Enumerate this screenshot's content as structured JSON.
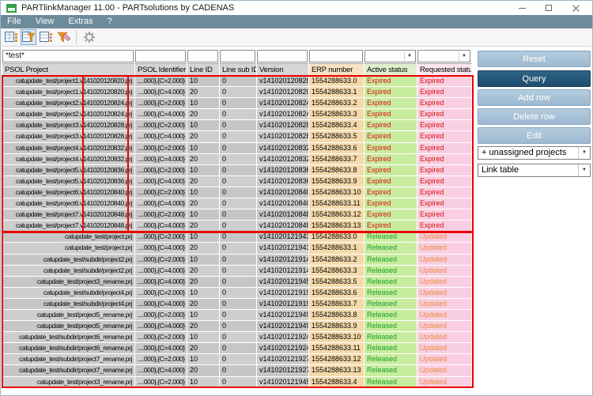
{
  "window": {
    "title": "PARTlinkManager 11.00 - PARTsolutions by CADENAS"
  },
  "menu": {
    "items": [
      "File",
      "View",
      "Extras",
      "?"
    ]
  },
  "toolbar": {
    "icons": [
      "link-table-icon",
      "filter-table-icon",
      "edit-links-table-icon",
      "clear-filter-icon",
      "settings-gear-icon"
    ],
    "pressed": "filter-table-icon",
    "disabled": "settings-gear-icon"
  },
  "filter": {
    "values": [
      "*test*",
      "",
      "",
      "",
      "",
      "",
      "",
      ""
    ]
  },
  "table": {
    "columns": [
      {
        "label": "PSOL Project"
      },
      {
        "label": "PSOL Identifier"
      },
      {
        "label": "Line ID"
      },
      {
        "label": "Line sub ID"
      },
      {
        "label": "Version"
      },
      {
        "label": "ERP number"
      },
      {
        "label": "Active status"
      },
      {
        "label": "Requested status"
      }
    ],
    "rows": [
      [
        "catupdate_test/project1.v141020120820.prj",
        "....000},{C=2.000}",
        "10",
        "0",
        "v141020120820",
        "1554288633.0",
        "Expired",
        "Expired"
      ],
      [
        "catupdate_test/project1.v141020120820.prj",
        "....000},{C=4.000}",
        "20",
        "0",
        "v141020120820",
        "1554288633.1",
        "Expired",
        "Expired"
      ],
      [
        "catupdate_test/project2.v141020120824.prj",
        "....000},{C=2.000}",
        "10",
        "0",
        "v141020120824",
        "1554288633.2",
        "Expired",
        "Expired"
      ],
      [
        "catupdate_test/project2.v141020120824.prj",
        "....000},{C=4.000}",
        "20",
        "0",
        "v141020120824",
        "1554288633.3",
        "Expired",
        "Expired"
      ],
      [
        "catupdate_test/project3.v141020120828.prj",
        "....000},{C=2.000}",
        "10",
        "0",
        "v141020120828",
        "1554288633.4",
        "Expired",
        "Expired"
      ],
      [
        "catupdate_test/project3.v141020120828.prj",
        "....000},{C=4.000}",
        "20",
        "0",
        "v141020120828",
        "1554288633.5",
        "Expired",
        "Expired"
      ],
      [
        "catupdate_test/project4.v141020120832.prj",
        "....000},{C=2.000}",
        "10",
        "0",
        "v141020120832",
        "1554288633.6",
        "Expired",
        "Expired"
      ],
      [
        "catupdate_test/project4.v141020120832.prj",
        "....000},{C=4.000}",
        "20",
        "0",
        "v141020120832",
        "1554288633.7",
        "Expired",
        "Expired"
      ],
      [
        "catupdate_test/project5.v141020120836.prj",
        "....000},{C=2.000}",
        "10",
        "0",
        "v141020120836",
        "1554288633.8",
        "Expired",
        "Expired"
      ],
      [
        "catupdate_test/project5.v141020120836.prj",
        "....000},{C=4.000}",
        "20",
        "0",
        "v141020120836",
        "1554288633.9",
        "Expired",
        "Expired"
      ],
      [
        "catupdate_test/project6.v141020120840.prj",
        "....000},{C=2.000}",
        "10",
        "0",
        "v141020120840",
        "1554288633.10",
        "Expired",
        "Expired"
      ],
      [
        "catupdate_test/project6.v141020120840.prj",
        "....000},{C=4.000}",
        "20",
        "0",
        "v141020120840",
        "1554288633.11",
        "Expired",
        "Expired"
      ],
      [
        "catupdate_test/project7.v141020120848.prj",
        "....000},{C=2.000}",
        "10",
        "0",
        "v141020120848",
        "1554288633.12",
        "Expired",
        "Expired"
      ],
      [
        "catupdate_test/project7.v141020120848.prj",
        "....000},{C=4.000}",
        "20",
        "0",
        "v141020120848",
        "1554288633.13",
        "Expired",
        "Expired"
      ],
      [
        "catupdate_test/project.prj",
        "....000},{C=2.000}",
        "10",
        "0",
        "v141020121941",
        "1554288633.0",
        "Released",
        "Updated"
      ],
      [
        "catupdate_test/project.prj",
        "....000},{C=4.000}",
        "20",
        "0",
        "v141020121941",
        "1554288633.1",
        "Released",
        "Updated"
      ],
      [
        "catupdate_test/subdir/project2.prj",
        "....000},{C=2.000}",
        "10",
        "0",
        "v141020121914",
        "1554288633.2",
        "Released",
        "Updated"
      ],
      [
        "catupdate_test/subdir/project2.prj",
        "....000},{C=4.000}",
        "20",
        "0",
        "v141020121914",
        "1554288633.3",
        "Released",
        "Updated"
      ],
      [
        "catupdate_test/project3_rename.prj",
        "....000},{C=4.000}",
        "20",
        "0",
        "v141020121945",
        "1554288633.5",
        "Released",
        "Updated"
      ],
      [
        "catupdate_test/subdir/project4.prj",
        "....000},{C=2.000}",
        "10",
        "0",
        "v141020121919",
        "1554288633.6",
        "Released",
        "Updated"
      ],
      [
        "catupdate_test/subdir/project4.prj",
        "....000},{C=4.000}",
        "20",
        "0",
        "v141020121919",
        "1554288633.7",
        "Released",
        "Updated"
      ],
      [
        "catupdate_test/project5_rename.prj",
        "....000},{C=2.000}",
        "10",
        "0",
        "v141020121949",
        "1554288633.8",
        "Released",
        "Updated"
      ],
      [
        "catupdate_test/project5_rename.prj",
        "....000},{C=4.000}",
        "20",
        "0",
        "v141020121949",
        "1554288633.9",
        "Released",
        "Updated"
      ],
      [
        "catupdate_test/subdir/project6_rename.prj",
        "....000},{C=2.000}",
        "10",
        "0",
        "v141020121924",
        "1554288633.10",
        "Released",
        "Updated"
      ],
      [
        "catupdate_test/subdir/project6_rename.prj",
        "....000},{C=4.000}",
        "20",
        "0",
        "v141020121924",
        "1554288633.11",
        "Released",
        "Updated"
      ],
      [
        "catupdate_test/subdir/project7_rename.prj",
        "....000},{C=2.000}",
        "10",
        "0",
        "v141020121927",
        "1554288633.12",
        "Released",
        "Updated"
      ],
      [
        "catupdate_test/subdir/project7_rename.prj",
        "....000},{C=4.000}",
        "20",
        "0",
        "v141020121927",
        "1554288633.13",
        "Released",
        "Updated"
      ],
      [
        "catupdate_test/project3_rename.prj",
        "....000},{C=2.000}",
        "10",
        "0",
        "v141020121945",
        "1554288633.4",
        "Released",
        "Updated"
      ]
    ]
  },
  "side_panel": {
    "buttons": [
      "Reset",
      "Query",
      "Add row",
      "Delete row",
      "Edit"
    ],
    "dropdowns": [
      "+ unassigned projects",
      "Link table"
    ]
  },
  "colors": {
    "menubar": "#6d8b9a",
    "button_light": "#a9c3d9",
    "button_primary": "#27587a",
    "annotation_red": "#ea0000",
    "erp_cell": "#f4d9ab",
    "active_cell": "#c8ec9e",
    "requested_cell": "#f8cfe1",
    "status": {
      "Expired": "#d90f0f",
      "Released": "#17a229",
      "Updated": "#f08a3c"
    }
  }
}
